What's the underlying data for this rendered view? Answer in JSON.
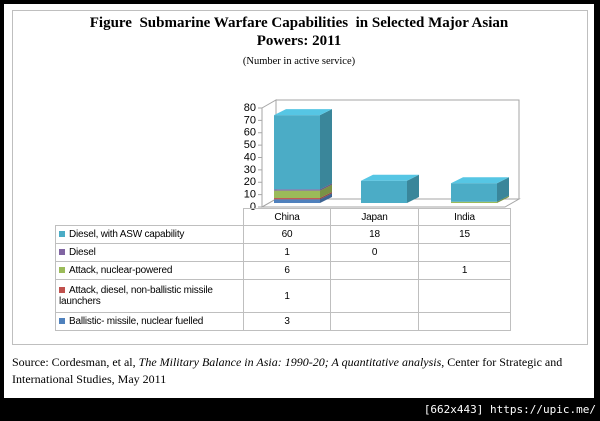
{
  "chart_data": {
    "type": "bar",
    "stacked": true,
    "three_d": true,
    "title": "Figure  Submarine Warfare Capabilities  in Selected Major Asian Powers: 2011",
    "subtitle": "(Number in active service)",
    "categories": [
      "China",
      "Japan",
      "India"
    ],
    "series": [
      {
        "name": "Diesel, with ASW capability",
        "color": "#4bacc6",
        "values": [
          60,
          18,
          15
        ]
      },
      {
        "name": "Diesel",
        "color": "#8064a2",
        "values": [
          1,
          0,
          null
        ]
      },
      {
        "name": "Attack, nuclear-powered",
        "color": "#9bbb59",
        "values": [
          6,
          null,
          1
        ]
      },
      {
        "name": "Attack, diesel, non-ballistic missile launchers",
        "color": "#c0504d",
        "values": [
          1,
          null,
          null
        ]
      },
      {
        "name": "Ballistic- missile, nuclear fuelled",
        "color": "#4f81bd",
        "values": [
          3,
          null,
          null
        ]
      }
    ],
    "ylim": [
      0,
      80
    ],
    "yticks": [
      0,
      10,
      20,
      30,
      40,
      50,
      60,
      70,
      80
    ]
  },
  "source": {
    "prefix": "Source: Cordesman, et al,",
    "title": "The Military Balance in Asia: 1990-20; A quantitative analysis",
    "suffix": ", Center for Strategic and International Studies, May 2011"
  },
  "watermark": "[662x443] https://upic.me/"
}
